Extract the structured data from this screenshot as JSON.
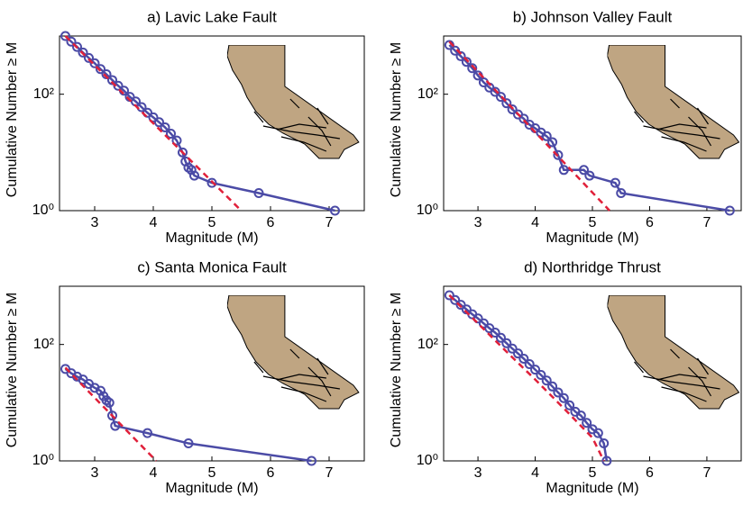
{
  "chart_data": [
    {
      "type": "line",
      "title": "a) Lavic Lake Fault",
      "xlabel": "Magnitude (M)",
      "ylabel": "Cumulative Number ≥ M",
      "xlim": [
        2.4,
        7.6
      ],
      "ylim": [
        1,
        1000
      ],
      "yscale": "log",
      "xticks": [
        3,
        4,
        5,
        6,
        7
      ],
      "yticks": [
        {
          "value": 1,
          "label": "10⁰"
        },
        {
          "value": 100,
          "label": "10²"
        }
      ],
      "series": [
        {
          "color": "#4b4ba6",
          "marker": "circle",
          "x": [
            2.5,
            2.6,
            2.7,
            2.8,
            2.9,
            3.0,
            3.1,
            3.2,
            3.3,
            3.4,
            3.5,
            3.6,
            3.7,
            3.8,
            3.9,
            4.0,
            4.1,
            4.2,
            4.3,
            4.4,
            4.5,
            4.55,
            4.6,
            4.65,
            4.7,
            5.0,
            5.8,
            7.1
          ],
          "values": [
            1000,
            800,
            650,
            520,
            420,
            340,
            270,
            220,
            175,
            140,
            115,
            90,
            75,
            60,
            48,
            40,
            33,
            27,
            21,
            16,
            10,
            7,
            5.5,
            5,
            4,
            3,
            2,
            1
          ]
        },
        {
          "color": "#e0203a",
          "linestyle": "dashed",
          "x": [
            2.5,
            5.5
          ],
          "values": [
            1000,
            1
          ]
        }
      ]
    },
    {
      "type": "line",
      "title": "b) Johnson Valley Fault",
      "xlabel": "Magnitude (M)",
      "ylabel": "Cumulative Number ≥ M",
      "xlim": [
        2.4,
        7.6
      ],
      "ylim": [
        1,
        1000
      ],
      "yscale": "log",
      "xticks": [
        3,
        4,
        5,
        6,
        7
      ],
      "yticks": [
        {
          "value": 1,
          "label": "10⁰"
        },
        {
          "value": 100,
          "label": "10²"
        }
      ],
      "series": [
        {
          "color": "#4b4ba6",
          "marker": "circle",
          "x": [
            2.5,
            2.6,
            2.7,
            2.8,
            2.9,
            3.0,
            3.1,
            3.2,
            3.3,
            3.4,
            3.5,
            3.6,
            3.7,
            3.8,
            3.9,
            4.0,
            4.1,
            4.2,
            4.3,
            4.4,
            4.5,
            4.85,
            4.95,
            5.4,
            5.5,
            7.4
          ],
          "values": [
            700,
            560,
            450,
            360,
            280,
            210,
            160,
            130,
            110,
            90,
            70,
            55,
            45,
            38,
            30,
            26,
            22,
            19,
            15,
            9,
            5,
            5,
            4,
            3,
            2,
            1
          ]
        },
        {
          "color": "#e0203a",
          "linestyle": "dashed",
          "x": [
            2.5,
            5.3
          ],
          "values": [
            800,
            1
          ]
        }
      ]
    },
    {
      "type": "line",
      "title": "c) Santa Monica Fault",
      "xlabel": "Magnitude (M)",
      "ylabel": "Cumulative Number ≥ M",
      "xlim": [
        2.4,
        7.6
      ],
      "ylim": [
        1,
        1000
      ],
      "yscale": "log",
      "xticks": [
        3,
        4,
        5,
        6,
        7
      ],
      "yticks": [
        {
          "value": 1,
          "label": "10⁰"
        },
        {
          "value": 100,
          "label": "10²"
        }
      ],
      "series": [
        {
          "color": "#4b4ba6",
          "marker": "circle",
          "x": [
            2.5,
            2.6,
            2.7,
            2.8,
            2.9,
            3.0,
            3.1,
            3.15,
            3.2,
            3.25,
            3.3,
            3.35,
            3.9,
            4.6,
            6.7
          ],
          "values": [
            38,
            32,
            28,
            25,
            21,
            18,
            16,
            13,
            11,
            10,
            6,
            4,
            3,
            2,
            1
          ]
        },
        {
          "color": "#e0203a",
          "linestyle": "dashed",
          "x": [
            2.5,
            4.05
          ],
          "values": [
            40,
            1
          ]
        }
      ]
    },
    {
      "type": "line",
      "title": "d) Northridge Thrust",
      "xlabel": "Magnitude (M)",
      "ylabel": "Cumulative Number ≥ M",
      "xlim": [
        2.4,
        7.6
      ],
      "ylim": [
        1,
        1000
      ],
      "yscale": "log",
      "xticks": [
        3,
        4,
        5,
        6,
        7
      ],
      "yticks": [
        {
          "value": 1,
          "label": "10⁰"
        },
        {
          "value": 100,
          "label": "10²"
        }
      ],
      "series": [
        {
          "color": "#4b4ba6",
          "marker": "circle",
          "x": [
            2.5,
            2.6,
            2.7,
            2.8,
            2.9,
            3.0,
            3.1,
            3.2,
            3.3,
            3.4,
            3.5,
            3.6,
            3.7,
            3.8,
            3.9,
            4.0,
            4.1,
            4.2,
            4.3,
            4.4,
            4.5,
            4.6,
            4.7,
            4.8,
            4.9,
            5.0,
            5.1,
            5.2,
            5.25
          ],
          "values": [
            700,
            580,
            480,
            400,
            330,
            280,
            230,
            190,
            160,
            130,
            105,
            85,
            70,
            57,
            46,
            37,
            30,
            24,
            19,
            15,
            12,
            9,
            7,
            6,
            4.5,
            3.5,
            3,
            2,
            1
          ]
        },
        {
          "color": "#e0203a",
          "linestyle": "dashed",
          "x": [
            2.5,
            3.0,
            3.5,
            4.0,
            4.5,
            5.0,
            5.2
          ],
          "values": [
            700,
            230,
            75,
            25,
            8,
            2.5,
            1
          ]
        }
      ]
    }
  ]
}
